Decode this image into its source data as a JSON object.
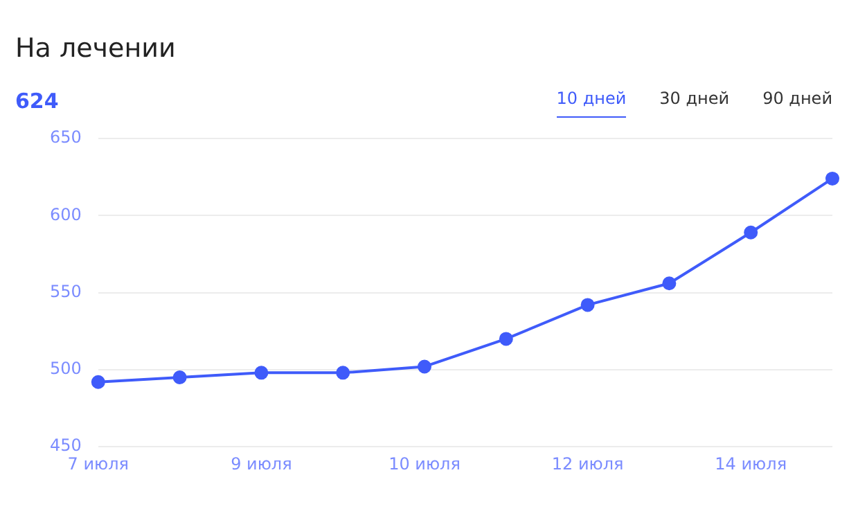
{
  "chart_data": {
    "type": "line",
    "title": "На лечении",
    "subtitle": "624",
    "annotations": [
      "10 дней",
      "30 дней",
      "90 дней"
    ],
    "categories": [
      "7 июля",
      null,
      "9 июля",
      null,
      "10 июля",
      null,
      "12 июля",
      null,
      "14 июля",
      null
    ],
    "series": [
      {
        "color": "#3f5bfa",
        "values": [
          492,
          495,
          498,
          498,
          502,
          520,
          542,
          556,
          589,
          624
        ]
      }
    ],
    "ylim": [
      450,
      650
    ],
    "yticks": [
      450,
      500,
      550,
      600,
      650
    ],
    "grid": "y",
    "legend": false,
    "marker": "circle",
    "line_style": "solid"
  }
}
